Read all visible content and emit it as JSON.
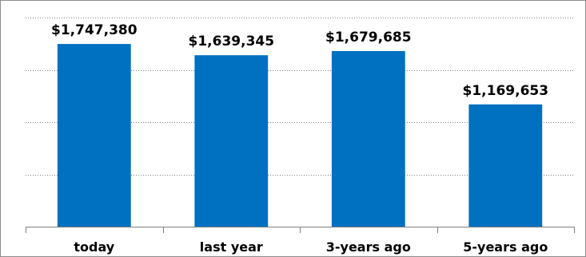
{
  "chart_data": {
    "type": "bar",
    "categories": [
      "today",
      "last year",
      "3-years ago",
      "5-years ago"
    ],
    "values": [
      1747380,
      1639345,
      1679685,
      1169653
    ],
    "data_labels": [
      "$1,747,380",
      "$1,639,345",
      "$1,679,685",
      "$1,169,653"
    ],
    "title": "",
    "xlabel": "",
    "ylabel": "",
    "ylim": [
      0,
      2000000
    ],
    "grid": true,
    "legend": "none",
    "bar_color": "#0070c0"
  }
}
